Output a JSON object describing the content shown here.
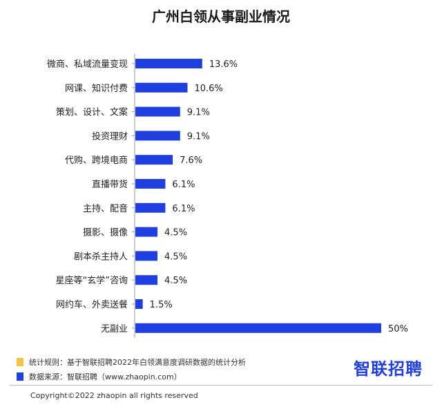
{
  "chart_data": {
    "type": "bar",
    "orientation": "horizontal",
    "title": "广州白领从事副业情况",
    "categories": [
      "微商、私域流量变现",
      "网课、知识付费",
      "策划、设计、文案",
      "投资理财",
      "代购、跨境电商",
      "直播带货",
      "主持、配音",
      "摄影、摄像",
      "剧本杀主持人",
      "星座等“玄学”咨询",
      "网约车、外卖送餐",
      "无副业"
    ],
    "values": [
      13.6,
      10.6,
      9.1,
      9.1,
      7.6,
      6.1,
      6.1,
      4.5,
      4.5,
      4.5,
      1.5,
      50
    ],
    "value_labels": [
      "13.6%",
      "10.6%",
      "9.1%",
      "9.1%",
      "7.6%",
      "6.1%",
      "6.1%",
      "4.5%",
      "4.5%",
      "4.5%",
      "1.5%",
      "50%"
    ],
    "unit": "%",
    "xlim": [
      0,
      50
    ],
    "grid": false,
    "bar_color": "#1f3fe0"
  },
  "footnotes": {
    "rule_label": "统计规则：基于智联招聘2022年白领满意度调研数据的统计分析",
    "rule_color": "#f5c242",
    "source_label": "数据来源：智联招聘（www.zhaopin.com）",
    "source_color": "#1f3fe0"
  },
  "brand": {
    "logo_text": "智联招聘"
  },
  "copyright": "Copyright©2022 zhaopin all rights reserved"
}
